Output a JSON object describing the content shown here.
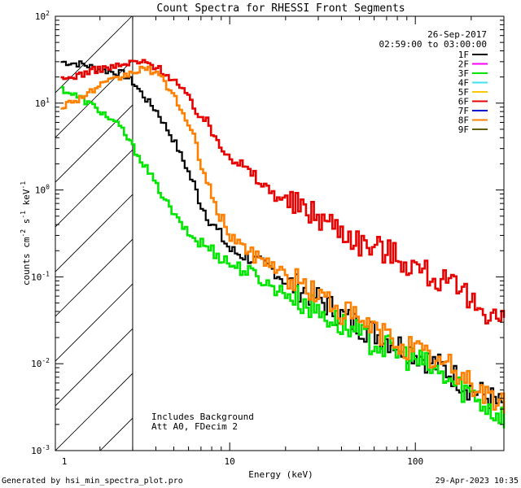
{
  "chart_data": {
    "type": "line",
    "title": "Count Spectra for RHESSI Front Segments",
    "xlabel": "Energy (keV)",
    "ylabel": "counts cm",
    "ylabel_parts": [
      "counts cm",
      "-2",
      " s",
      "-1",
      " keV",
      "-1"
    ],
    "xscale": "log",
    "yscale": "log",
    "xlim": [
      1.15,
      300
    ],
    "ylim": [
      0.001,
      100
    ],
    "x_ticks": [
      {
        "v": 10,
        "label": "10"
      },
      {
        "v": 100,
        "label": "100"
      }
    ],
    "y_ticks": [
      {
        "exp": -3,
        "base": "10",
        "e": "-3"
      },
      {
        "exp": -2,
        "base": "10",
        "e": "-2"
      },
      {
        "exp": -1,
        "base": "10",
        "e": "-1"
      },
      {
        "exp": 0,
        "base": "10",
        "e": "0"
      },
      {
        "exp": 1,
        "base": "10",
        "e": "1"
      },
      {
        "exp": 2,
        "base": "10",
        "e": "2"
      }
    ],
    "x_tick_one": "1",
    "date": "26-Sep-2017",
    "time_range": "02:59:00 to 03:00:00",
    "notes": [
      "Includes Background",
      "Att A0, FDecim 2"
    ],
    "hatch_energy_limit": 3,
    "legend": [
      {
        "label": "1F",
        "color": "#000000"
      },
      {
        "label": "2F",
        "color": "#ff00ff"
      },
      {
        "label": "3F",
        "color": "#00e600"
      },
      {
        "label": "4F",
        "color": "#40e0f0"
      },
      {
        "label": "5F",
        "color": "#ffc800"
      },
      {
        "label": "6F",
        "color": "#e60000"
      },
      {
        "label": "7F",
        "color": "#0000cc"
      },
      {
        "label": "8F",
        "color": "#ff8000"
      },
      {
        "label": "9F",
        "color": "#606000"
      }
    ],
    "series": [
      {
        "name": "1F",
        "color": "#000000",
        "anchors": [
          [
            1.2,
            30
          ],
          [
            1.6,
            28
          ],
          [
            2.0,
            24
          ],
          [
            2.6,
            22
          ],
          [
            3.0,
            17
          ],
          [
            3.5,
            11
          ],
          [
            4.0,
            8
          ],
          [
            5.0,
            3.5
          ],
          [
            6.0,
            1.5
          ],
          [
            7.0,
            0.65
          ],
          [
            8.0,
            0.4
          ],
          [
            10.0,
            0.2
          ],
          [
            13.0,
            0.16
          ],
          [
            17.0,
            0.12
          ],
          [
            20.0,
            0.085
          ],
          [
            25.0,
            0.07
          ],
          [
            30.0,
            0.055
          ],
          [
            40.0,
            0.035
          ],
          [
            50.0,
            0.027
          ],
          [
            70.0,
            0.019
          ],
          [
            100.0,
            0.013
          ],
          [
            150.0,
            0.008
          ],
          [
            200.0,
            0.005
          ],
          [
            250.0,
            0.004
          ],
          [
            300.0,
            0.003
          ]
        ]
      },
      {
        "name": "3F",
        "color": "#00e600",
        "anchors": [
          [
            1.2,
            15
          ],
          [
            1.6,
            11
          ],
          [
            2.0,
            8
          ],
          [
            2.6,
            5
          ],
          [
            3.0,
            3
          ],
          [
            3.5,
            1.8
          ],
          [
            4.0,
            1.1
          ],
          [
            5.0,
            0.5
          ],
          [
            6.0,
            0.3
          ],
          [
            8.0,
            0.2
          ],
          [
            10.0,
            0.14
          ],
          [
            13.0,
            0.11
          ],
          [
            17.0,
            0.075
          ],
          [
            20.0,
            0.065
          ],
          [
            25.0,
            0.05
          ],
          [
            30.0,
            0.04
          ],
          [
            40.0,
            0.028
          ],
          [
            50.0,
            0.021
          ],
          [
            70.0,
            0.015
          ],
          [
            100.0,
            0.011
          ],
          [
            150.0,
            0.0065
          ],
          [
            200.0,
            0.0045
          ],
          [
            250.0,
            0.003
          ],
          [
            300.0,
            0.0025
          ]
        ]
      },
      {
        "name": "6F",
        "color": "#e60000",
        "anchors": [
          [
            1.2,
            18
          ],
          [
            1.6,
            22
          ],
          [
            2.0,
            25
          ],
          [
            2.6,
            27
          ],
          [
            3.0,
            30
          ],
          [
            3.5,
            29
          ],
          [
            4.0,
            26
          ],
          [
            5.0,
            18
          ],
          [
            6.0,
            11
          ],
          [
            7.0,
            7
          ],
          [
            8.0,
            4.5
          ],
          [
            10.0,
            2.5
          ],
          [
            13.0,
            1.5
          ],
          [
            16.0,
            1.0
          ],
          [
            20.0,
            0.75
          ],
          [
            25.0,
            0.6
          ],
          [
            30.0,
            0.5
          ],
          [
            40.0,
            0.35
          ],
          [
            50.0,
            0.25
          ],
          [
            70.0,
            0.2
          ],
          [
            100.0,
            0.13
          ],
          [
            150.0,
            0.08
          ],
          [
            200.0,
            0.05
          ],
          [
            250.0,
            0.04
          ],
          [
            300.0,
            0.03
          ]
        ]
      },
      {
        "name": "8F",
        "color": "#ff8000",
        "anchors": [
          [
            1.2,
            9
          ],
          [
            1.6,
            12
          ],
          [
            2.0,
            16
          ],
          [
            2.6,
            20
          ],
          [
            3.0,
            23
          ],
          [
            3.5,
            25
          ],
          [
            4.0,
            22
          ],
          [
            5.0,
            12
          ],
          [
            6.0,
            5
          ],
          [
            7.0,
            2
          ],
          [
            8.0,
            0.7
          ],
          [
            10.0,
            0.3
          ],
          [
            13.0,
            0.18
          ],
          [
            17.0,
            0.14
          ],
          [
            20.0,
            0.1
          ],
          [
            25.0,
            0.08
          ],
          [
            30.0,
            0.06
          ],
          [
            40.0,
            0.04
          ],
          [
            50.0,
            0.03
          ],
          [
            70.0,
            0.02
          ],
          [
            100.0,
            0.014
          ],
          [
            150.0,
            0.009
          ],
          [
            200.0,
            0.006
          ],
          [
            250.0,
            0.004
          ],
          [
            300.0,
            0.0032
          ]
        ]
      }
    ]
  },
  "footer": {
    "generated_by": "Generated by hsi_min_spectra_plot.pro",
    "timestamp": "29-Apr-2023 10:35"
  }
}
